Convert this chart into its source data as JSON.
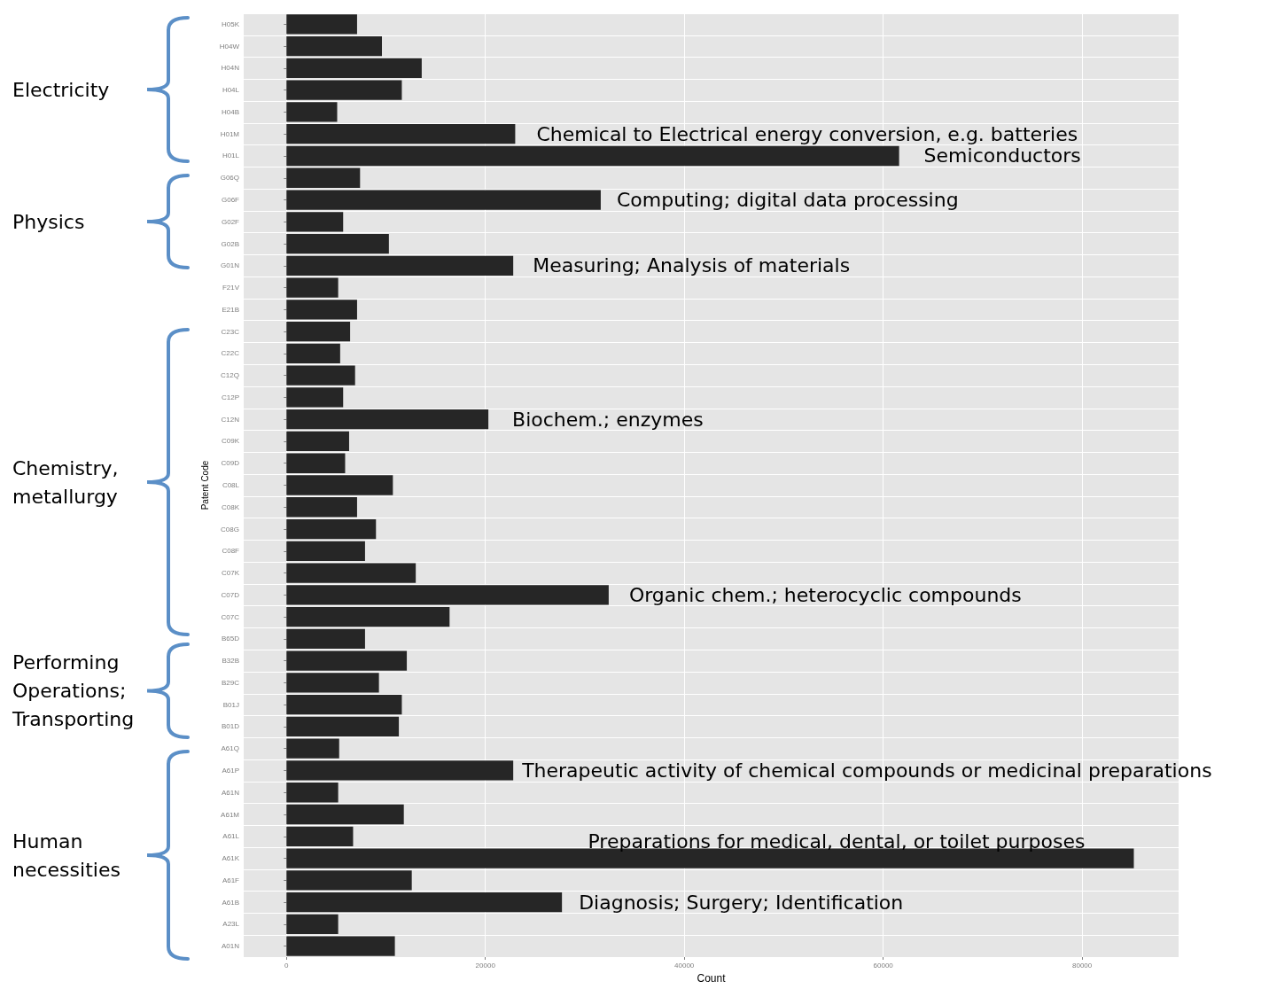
{
  "chart_data": {
    "type": "bar",
    "orientation": "horizontal",
    "xlabel": "Count",
    "ylabel": "Patent Code",
    "categories": [
      "H05K",
      "H04W",
      "H04N",
      "H04L",
      "H04B",
      "H01M",
      "H01L",
      "G06Q",
      "G06F",
      "G02F",
      "G02B",
      "G01N",
      "F21V",
      "E21B",
      "C23C",
      "C22C",
      "C12Q",
      "C12P",
      "C12N",
      "C09K",
      "C09D",
      "C08L",
      "C08K",
      "C08G",
      "C08F",
      "C07K",
      "C07D",
      "C07C",
      "B65D",
      "B32B",
      "B29C",
      "B01J",
      "B01D",
      "A61Q",
      "A61P",
      "A61N",
      "A61M",
      "A61L",
      "A61K",
      "A61F",
      "A61B",
      "A23L",
      "A01N"
    ],
    "values": [
      7100,
      9600,
      13600,
      11600,
      5100,
      23000,
      61600,
      7400,
      31600,
      5700,
      10300,
      22800,
      5200,
      7100,
      6400,
      5400,
      6900,
      5700,
      20300,
      6300,
      5900,
      10700,
      7100,
      9000,
      7900,
      13000,
      32400,
      16400,
      7900,
      12100,
      9300,
      11600,
      11300,
      5300,
      22800,
      5200,
      11800,
      6700,
      85200,
      12600,
      27700,
      5200,
      10900
    ],
    "color": "#262626",
    "xlim": [
      -4300,
      89700
    ],
    "xticks": [
      0,
      20000,
      40000,
      60000,
      80000
    ],
    "grid": true,
    "annotations": [
      "Electricity",
      "Physics",
      "Chemistry, metallurgy",
      "Performing Operations; Transporting",
      "Human necessities",
      {
        "text": "Chemical to Electrical energy conversion, e.g. batteries",
        "x": 23000,
        "y": "H01M"
      },
      {
        "text": "Semiconductors",
        "x": 61600,
        "y": "H01L"
      },
      {
        "text": "Computing; digital data processing",
        "x": 31600,
        "y": "G06F"
      },
      {
        "text": "Measuring; Analysis of materials",
        "x": 22800,
        "y": "G01N"
      },
      {
        "text": "Biochem.; enzymes",
        "x": 20300,
        "y": "C12N"
      },
      {
        "text": "Organic chem.; heterocyclic compounds",
        "x": 32400,
        "y": "C07D"
      },
      {
        "text": "Therapeutic activity of chemical compounds or medicinal preparations",
        "x": 22800,
        "y": "A61P"
      },
      {
        "text": "Preparations for medical, dental, or toilet purposes",
        "x": 85200,
        "y": "A61K"
      },
      {
        "text": "Diagnosis; Surgery; Identification",
        "x": 27700,
        "y": "A61B"
      }
    ]
  }
}
